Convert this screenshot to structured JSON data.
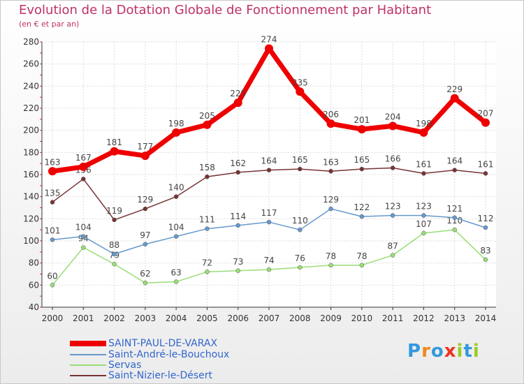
{
  "chart_data": {
    "type": "line",
    "title": "Evolution de la Dotation Globale de Fonctionnement par Habitant",
    "subtitle": "(en € et par an)",
    "x": [
      "2000",
      "2001",
      "2002",
      "2003",
      "2004",
      "2005",
      "2006",
      "2007",
      "2008",
      "2009",
      "2010",
      "2011",
      "2012",
      "2013",
      "2014"
    ],
    "ylim": [
      40,
      280
    ],
    "yticks": [
      40,
      60,
      80,
      100,
      120,
      140,
      160,
      180,
      200,
      220,
      240,
      260,
      280
    ],
    "grid": true,
    "series": [
      {
        "name": "Servas",
        "color": "#99dd77",
        "values": [
          60,
          94,
          79,
          62,
          63,
          72,
          73,
          74,
          76,
          78,
          78,
          87,
          107,
          110,
          83
        ]
      },
      {
        "name": "Saint-André-le-Bouchoux",
        "color": "#6699cc",
        "values": [
          101,
          104,
          88,
          97,
          104,
          111,
          114,
          117,
          110,
          129,
          122,
          123,
          123,
          121,
          112
        ]
      },
      {
        "name": "Saint-Nizier-le-Désert",
        "color": "#773333",
        "values": [
          135,
          156,
          119,
          129,
          140,
          158,
          162,
          164,
          165,
          163,
          165,
          166,
          161,
          164,
          161
        ]
      },
      {
        "name": "SAINT-PAUL-DE-VARAX",
        "color": "#ee0000",
        "values": [
          163,
          167,
          181,
          177,
          198,
          205,
          225,
          274,
          235,
          206,
          201,
          204,
          198,
          229,
          207
        ]
      }
    ]
  },
  "legend": [
    {
      "label": "SAINT-PAUL-DE-VARAX",
      "color": "#ee0000"
    },
    {
      "label": "Saint-André-le-Bouchoux",
      "color": "#6699cc"
    },
    {
      "label": "Servas",
      "color": "#99dd77"
    },
    {
      "label": "Saint-Nizier-le-Désert",
      "color": "#773333"
    }
  ],
  "logo": {
    "text": "Proxiti",
    "letters": [
      "P",
      "r",
      "o",
      "x",
      "i",
      "t",
      "i"
    ],
    "colors": [
      "#3399dd",
      "#ee8822",
      "#3399dd",
      "#ee3322",
      "#99cc22",
      "#3399dd",
      "#99cc22"
    ]
  }
}
